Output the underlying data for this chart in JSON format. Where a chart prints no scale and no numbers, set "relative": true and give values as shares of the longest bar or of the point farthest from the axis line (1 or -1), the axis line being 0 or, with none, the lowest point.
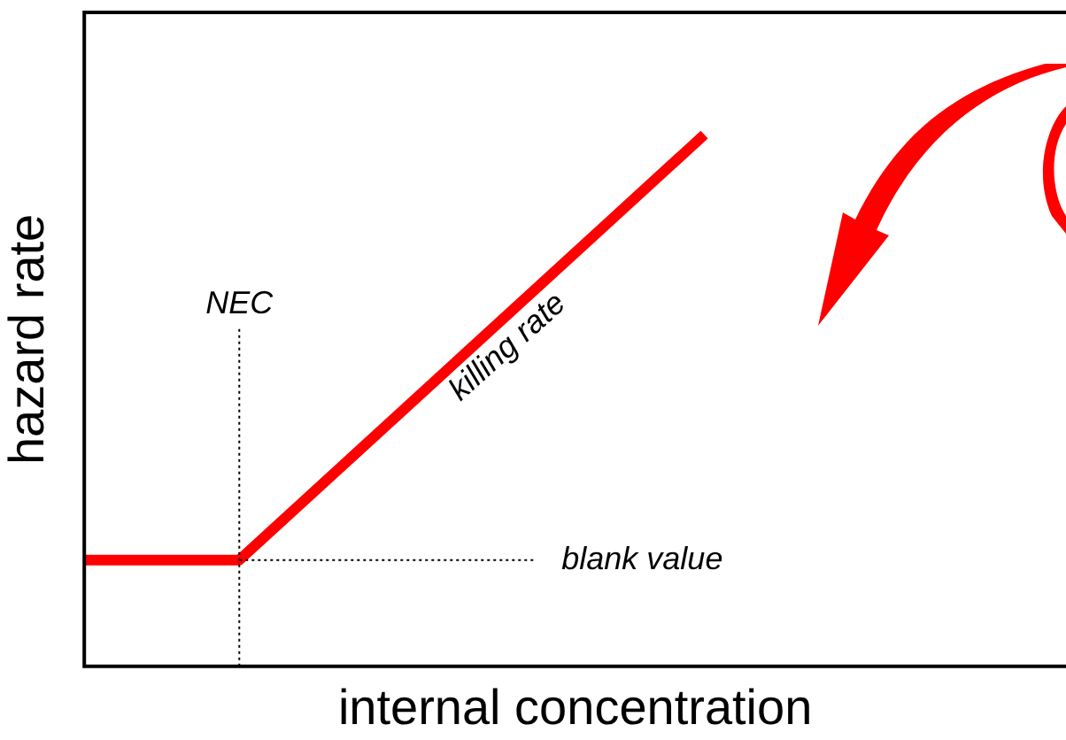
{
  "chart_data": {
    "type": "line",
    "relative": true,
    "xlabel": "internal concentration",
    "ylabel": "hazard rate",
    "categories": [
      null,
      null,
      null,
      null,
      null,
      null,
      null,
      null,
      null,
      null,
      null,
      null,
      null,
      null,
      null,
      null,
      null,
      null,
      null,
      null
    ],
    "series": [
      {
        "color": "#ff0000",
        "values": [
          0.2,
          null,
          null,
          0.2,
          null,
          null,
          null,
          null,
          null,
          null,
          null,
          null,
          1,
          null,
          null,
          null,
          null,
          null,
          null,
          null
        ]
      }
    ],
    "ref_lines": [
      {
        "axis": "y",
        "value": 0.2,
        "label": "blank value",
        "color": "#000000",
        "line_style": "dotted"
      }
    ],
    "annotations": [
      "NEC",
      "killing rate"
    ],
    "grid": false,
    "legend": false,
    "tick_labels": false,
    "marker": "none",
    "line_style": "solid"
  }
}
